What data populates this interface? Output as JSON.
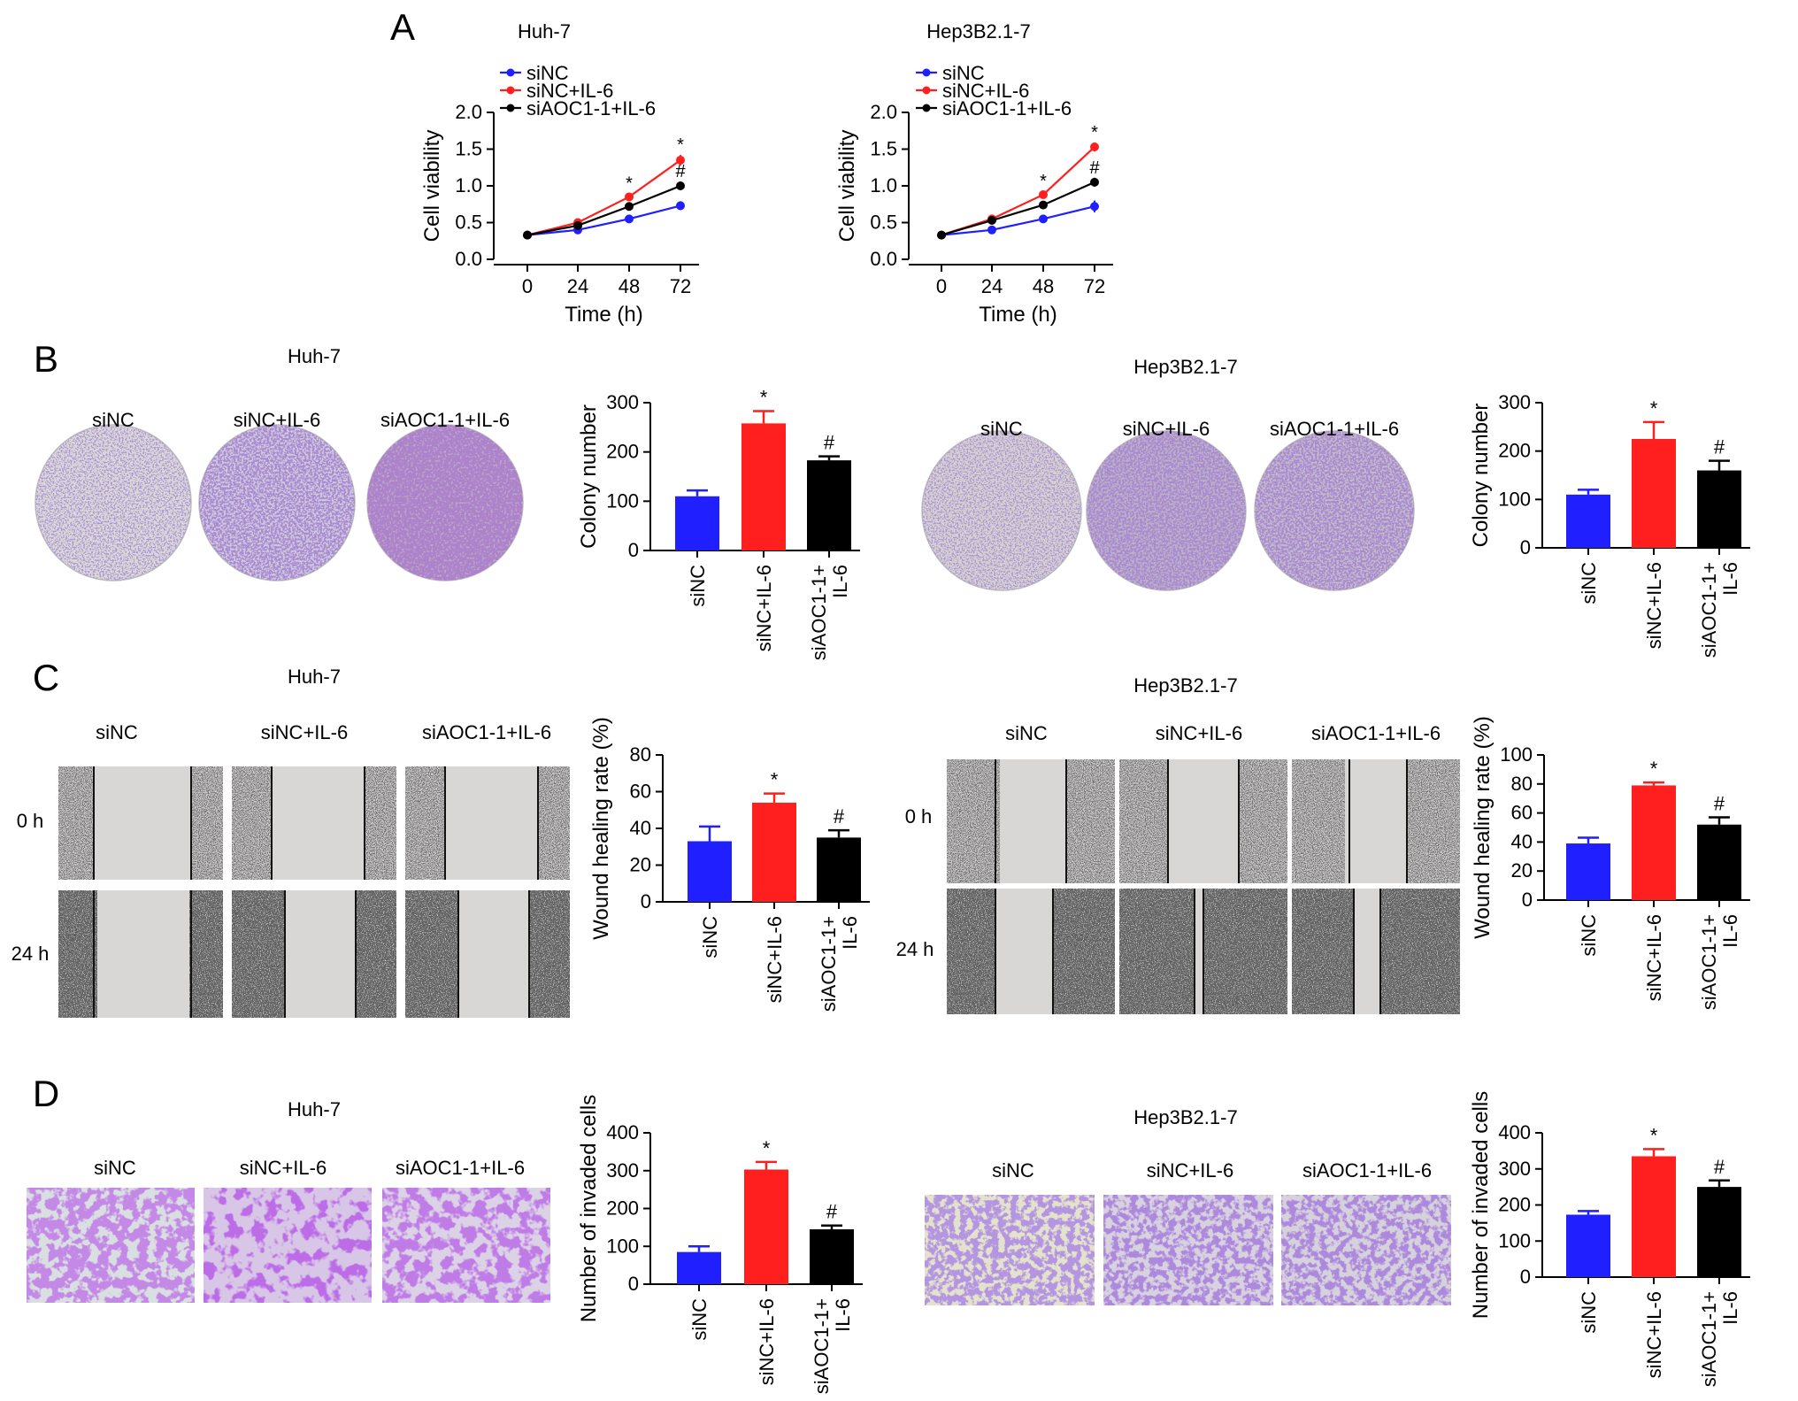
{
  "figure": {
    "panel_letters": [
      "A",
      "B",
      "C",
      "D"
    ],
    "group_labels": [
      "siNC",
      "siNC+IL-6",
      "siAOC1-1+IL-6"
    ],
    "bar_tick_labels": [
      [
        "siNC"
      ],
      [
        "siNC+IL-6"
      ],
      [
        "siAOC1-1+",
        "IL-6"
      ]
    ],
    "time_labels": [
      "0 h",
      "24 h"
    ],
    "colors": {
      "siNC": "#1f1fff",
      "siNC+IL-6": "#ff1f1f",
      "siAOC1-1+IL-6": "#000000"
    }
  },
  "panel_A": [
    {
      "title": "Huh-7",
      "legend": [
        "siNC",
        "siNC+IL-6",
        "siAOC1-1+IL-6"
      ]
    },
    {
      "title": "Hep3B2.1-7",
      "legend": [
        "siNC",
        "siNC+IL-6",
        "siAOC1-1+IL-6"
      ]
    }
  ],
  "panel_B": {
    "cell_lines": [
      "Huh-7",
      "Hep3B2.1-7"
    ]
  },
  "panel_C": {
    "cell_lines": [
      "Huh-7",
      "Hep3B2.1-7"
    ]
  },
  "panel_D": {
    "cell_lines": [
      "Huh-7",
      "Hep3B2.1-7"
    ]
  },
  "chart_data": [
    {
      "id": "A-huh7",
      "type": "line",
      "title": "Huh-7",
      "xlabel": "Time (h)",
      "ylabel": "Cell viability",
      "x": [
        0,
        24,
        48,
        72
      ],
      "ylim": [
        0,
        2.0
      ],
      "yticks": [
        "0.0",
        "0.5",
        "1.0",
        "1.5",
        "2.0"
      ],
      "xticks": [
        "0",
        "24",
        "48",
        "72"
      ],
      "series": [
        {
          "name": "siNC",
          "color": "#1f1fff",
          "values": [
            0.33,
            0.4,
            0.55,
            0.73
          ],
          "err": [
            0.03,
            0.03,
            0.04,
            0.06
          ],
          "marks": [
            "",
            "",
            "",
            ""
          ]
        },
        {
          "name": "siNC+IL-6",
          "color": "#ff1f1f",
          "values": [
            0.33,
            0.5,
            0.85,
            1.35
          ],
          "err": [
            0.03,
            0.03,
            0.05,
            0.07
          ],
          "marks": [
            "",
            "",
            "*",
            "*"
          ]
        },
        {
          "name": "siAOC1-1+IL-6",
          "color": "#000000",
          "values": [
            0.33,
            0.46,
            0.72,
            1.0
          ],
          "err": [
            0.03,
            0.03,
            0.04,
            0.06
          ],
          "marks": [
            "",
            "",
            "",
            "#"
          ]
        }
      ]
    },
    {
      "id": "A-hep3b",
      "type": "line",
      "title": "Hep3B2.1-7",
      "xlabel": "Time (h)",
      "ylabel": "Cell viability",
      "x": [
        0,
        24,
        48,
        72
      ],
      "ylim": [
        0,
        2.0
      ],
      "yticks": [
        "0.0",
        "0.5",
        "1.0",
        "1.5",
        "2.0"
      ],
      "xticks": [
        "0",
        "24",
        "48",
        "72"
      ],
      "series": [
        {
          "name": "siNC",
          "color": "#1f1fff",
          "values": [
            0.33,
            0.4,
            0.55,
            0.72
          ],
          "err": [
            0.03,
            0.03,
            0.04,
            0.08
          ],
          "marks": [
            "",
            "",
            "",
            ""
          ]
        },
        {
          "name": "siNC+IL-6",
          "color": "#ff1f1f",
          "values": [
            0.33,
            0.55,
            0.88,
            1.53
          ],
          "err": [
            0.03,
            0.03,
            0.05,
            0.06
          ],
          "marks": [
            "",
            "",
            "*",
            "*"
          ]
        },
        {
          "name": "siAOC1-1+IL-6",
          "color": "#000000",
          "values": [
            0.33,
            0.53,
            0.74,
            1.05
          ],
          "err": [
            0.03,
            0.03,
            0.04,
            0.06
          ],
          "marks": [
            "",
            "",
            "",
            "#"
          ]
        }
      ]
    },
    {
      "id": "B-huh7",
      "type": "bar",
      "ylabel": "Colony number",
      "categories": [
        "siNC",
        "siNC+IL-6",
        "siAOC1-1+IL-6"
      ],
      "values": [
        110,
        258,
        183
      ],
      "errors": [
        12,
        25,
        8
      ],
      "marks": [
        "",
        "*",
        "#"
      ],
      "ylim": [
        0,
        300
      ],
      "yticks": [
        "0",
        "100",
        "200",
        "300"
      ]
    },
    {
      "id": "B-hep3b",
      "type": "bar",
      "ylabel": "Colony number",
      "categories": [
        "siNC",
        "siNC+IL-6",
        "siAOC1-1+IL-6"
      ],
      "values": [
        110,
        225,
        160
      ],
      "errors": [
        10,
        35,
        20
      ],
      "marks": [
        "",
        "*",
        "#"
      ],
      "ylim": [
        0,
        300
      ],
      "yticks": [
        "0",
        "100",
        "200",
        "300"
      ]
    },
    {
      "id": "C-huh7",
      "type": "bar",
      "ylabel": "Wound healing rate (%)",
      "categories": [
        "siNC",
        "siNC+IL-6",
        "siAOC1-1+IL-6"
      ],
      "values": [
        33,
        54,
        35
      ],
      "errors": [
        8,
        5,
        4
      ],
      "marks": [
        "",
        "*",
        "#"
      ],
      "ylim": [
        0,
        80
      ],
      "yticks": [
        "0",
        "20",
        "40",
        "60",
        "80"
      ]
    },
    {
      "id": "C-hep3b",
      "type": "bar",
      "ylabel": "Wound healing rate (%)",
      "categories": [
        "siNC",
        "siNC+IL-6",
        "siAOC1-1+IL-6"
      ],
      "values": [
        39,
        79,
        52
      ],
      "errors": [
        4,
        2,
        5
      ],
      "marks": [
        "",
        "*",
        "#"
      ],
      "ylim": [
        0,
        100
      ],
      "yticks": [
        "0",
        "20",
        "40",
        "60",
        "80",
        "100"
      ]
    },
    {
      "id": "D-huh7",
      "type": "bar",
      "ylabel": "Number of invaded cells",
      "categories": [
        "siNC",
        "siNC+IL-6",
        "siAOC1-1+IL-6"
      ],
      "values": [
        85,
        303,
        145
      ],
      "errors": [
        15,
        20,
        10
      ],
      "marks": [
        "",
        "*",
        "#"
      ],
      "ylim": [
        0,
        400
      ],
      "yticks": [
        "0",
        "100",
        "200",
        "300",
        "400"
      ]
    },
    {
      "id": "D-hep3b",
      "type": "bar",
      "ylabel": "Number of invaded cells",
      "categories": [
        "siNC",
        "siNC+IL-6",
        "siAOC1-1+IL-6"
      ],
      "values": [
        173,
        335,
        250
      ],
      "errors": [
        10,
        20,
        18
      ],
      "marks": [
        "",
        "*",
        "#"
      ],
      "ylim": [
        0,
        400
      ],
      "yticks": [
        "0",
        "100",
        "200",
        "300",
        "400"
      ]
    }
  ]
}
